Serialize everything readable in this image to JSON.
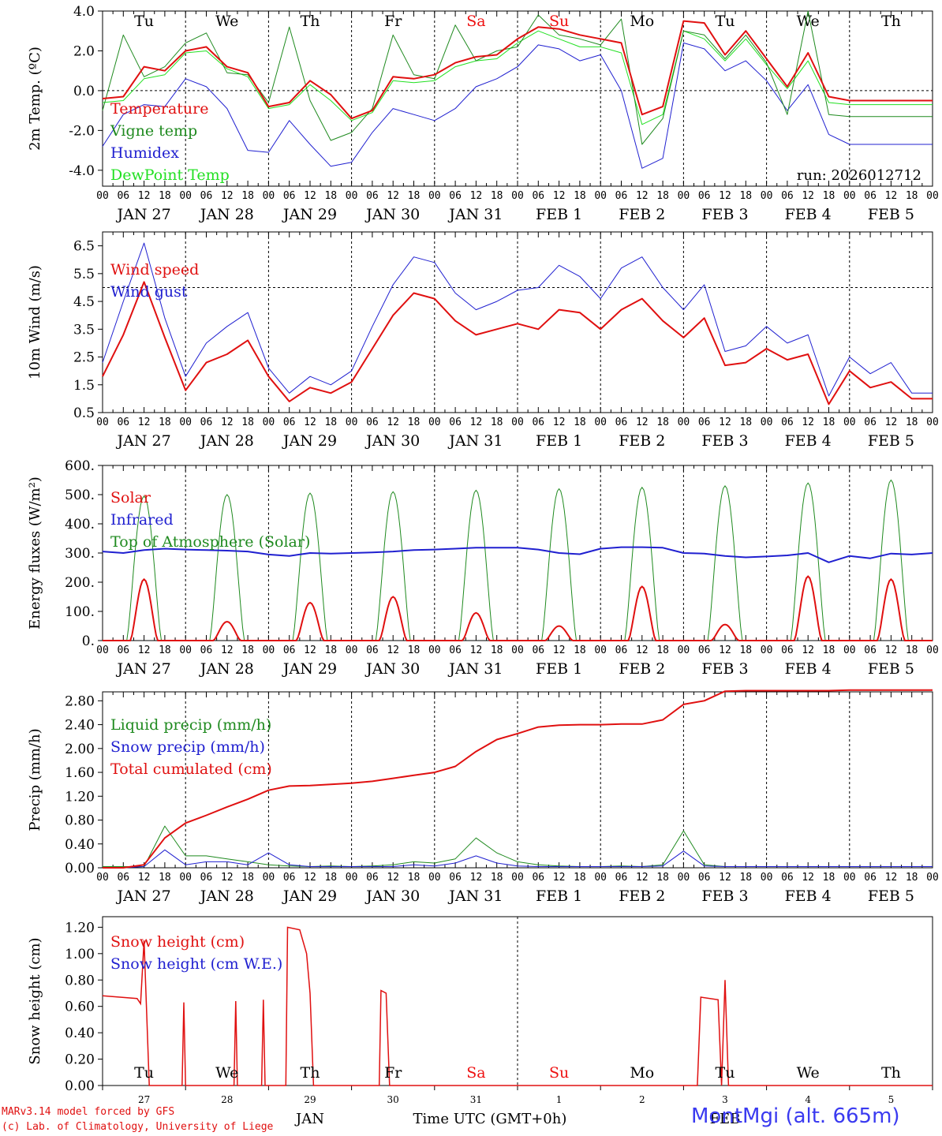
{
  "chart_data": [
    {
      "id": "temp",
      "type": "line",
      "ylabel": "2m Temp. (ºC)",
      "ylim": [
        -4.8,
        4.0
      ],
      "yticks": [
        4.0,
        2.0,
        0.0,
        -2.0,
        -4.0
      ],
      "yticklabels": [
        "4.0",
        "2.0",
        "0.0",
        "-2.0",
        "-4.0"
      ],
      "zero_line": 0.0,
      "day_names": [
        "Tu",
        "We",
        "Th",
        "Fr",
        "Sa",
        "Su",
        "Mo",
        "Tu",
        "We",
        "Th"
      ],
      "day_name_colors": [
        "#000",
        "#000",
        "#000",
        "#000",
        "#e11",
        "#e11",
        "#000",
        "#000",
        "#000",
        "#000"
      ],
      "legend": [
        "Temperature",
        "Vigne temp",
        "Humidex",
        "DewPoint Temp"
      ],
      "run_label": "run: 2026012712",
      "x_hours": [
        0,
        6,
        12,
        18,
        24,
        30,
        36,
        42,
        48,
        54,
        60,
        66,
        72,
        78,
        84,
        90,
        96,
        102,
        108,
        114,
        120,
        126,
        132,
        138,
        144,
        150,
        156,
        162,
        168,
        174,
        180,
        186,
        192,
        198,
        204,
        210,
        216,
        222,
        228,
        234,
        240
      ],
      "series": [
        {
          "name": "Temperature",
          "color": "#e01010",
          "width": 2,
          "values": [
            -0.4,
            -0.3,
            1.2,
            1.0,
            2.0,
            2.2,
            1.2,
            0.9,
            -0.8,
            -0.6,
            0.5,
            -0.2,
            -1.4,
            -1.0,
            0.7,
            0.6,
            0.8,
            1.4,
            1.7,
            1.8,
            2.6,
            3.2,
            3.1,
            2.8,
            2.6,
            2.4,
            -1.2,
            -0.8,
            3.5,
            3.4,
            1.8,
            3.0,
            1.6,
            0.2,
            1.9,
            -0.3,
            -0.5,
            -0.5,
            -0.5,
            -0.5,
            -0.5
          ]
        },
        {
          "name": "Vigne temp",
          "color": "#1f8a1f",
          "width": 1,
          "values": [
            -1.0,
            2.8,
            0.7,
            1.2,
            2.4,
            2.9,
            0.9,
            0.8,
            -0.6,
            3.2,
            -0.5,
            -2.5,
            -2.1,
            -0.9,
            2.8,
            0.8,
            0.6,
            3.3,
            1.5,
            2.0,
            2.2,
            3.8,
            2.8,
            2.6,
            2.3,
            3.6,
            -2.7,
            -1.4,
            3.0,
            2.8,
            1.6,
            2.8,
            1.4,
            -1.2,
            4.0,
            -1.2,
            -1.3,
            -1.3,
            -1.3,
            -1.3,
            -1.3
          ]
        },
        {
          "name": "Humidex",
          "color": "#2020d0",
          "width": 1,
          "values": [
            -2.8,
            -1.2,
            -0.7,
            -0.8,
            0.6,
            0.2,
            -0.9,
            -3.0,
            -3.1,
            -1.5,
            -2.7,
            -3.8,
            -3.6,
            -2.1,
            -0.9,
            -1.2,
            -1.5,
            -0.9,
            0.2,
            0.6,
            1.2,
            2.3,
            2.1,
            1.5,
            1.8,
            0.0,
            -3.9,
            -3.4,
            2.4,
            2.1,
            1.0,
            1.5,
            0.5,
            -1.0,
            0.3,
            -2.2,
            -2.7,
            -2.7,
            -2.7,
            -2.7,
            -2.7
          ]
        },
        {
          "name": "DewPoint Temp",
          "color": "#22e022",
          "width": 1,
          "values": [
            -0.6,
            -0.5,
            0.6,
            0.8,
            1.9,
            2.0,
            1.1,
            0.7,
            -0.9,
            -0.7,
            0.3,
            -0.5,
            -1.5,
            -1.1,
            0.5,
            0.4,
            0.5,
            1.2,
            1.5,
            1.6,
            2.4,
            3.0,
            2.6,
            2.2,
            2.2,
            1.9,
            -1.7,
            -1.2,
            3.0,
            2.6,
            1.5,
            2.6,
            1.3,
            0.1,
            1.5,
            -0.6,
            -0.7,
            -0.7,
            -0.7,
            -0.7,
            -0.7
          ]
        }
      ]
    },
    {
      "id": "wind",
      "type": "line",
      "ylabel": "10m Wind (m/s)",
      "ylim": [
        0.5,
        7.0
      ],
      "yticks": [
        6.5,
        5.5,
        4.5,
        3.5,
        2.5,
        1.5,
        0.5
      ],
      "yticklabels": [
        "6.5",
        "5.5",
        "4.5",
        "3.5",
        "2.5",
        "1.5",
        "0.5"
      ],
      "ref_line": 5.0,
      "legend": [
        "Wind speed",
        "Wind gust"
      ],
      "x_hours": [
        0,
        6,
        12,
        18,
        24,
        30,
        36,
        42,
        48,
        54,
        60,
        66,
        72,
        78,
        84,
        90,
        96,
        102,
        108,
        114,
        120,
        126,
        132,
        138,
        144,
        150,
        156,
        162,
        168,
        174,
        180,
        186,
        192,
        198,
        204,
        210,
        216,
        222,
        228,
        234,
        240
      ],
      "series": [
        {
          "name": "Wind speed",
          "color": "#e01010",
          "width": 2,
          "values": [
            1.8,
            3.3,
            5.2,
            3.2,
            1.3,
            2.3,
            2.6,
            3.1,
            1.8,
            0.9,
            1.4,
            1.2,
            1.6,
            2.8,
            4.0,
            4.8,
            4.6,
            3.8,
            3.3,
            3.5,
            3.7,
            3.5,
            4.2,
            4.1,
            3.5,
            4.2,
            4.6,
            3.8,
            3.2,
            3.9,
            2.2,
            2.3,
            2.8,
            2.4,
            2.6,
            0.8,
            2.0,
            1.4,
            1.6,
            1.0,
            1.0
          ]
        },
        {
          "name": "Wind gust",
          "color": "#2020d0",
          "width": 1,
          "values": [
            2.3,
            4.5,
            6.6,
            3.9,
            1.8,
            3.0,
            3.6,
            4.1,
            2.1,
            1.2,
            1.8,
            1.5,
            2.0,
            3.6,
            5.1,
            6.1,
            5.9,
            4.8,
            4.2,
            4.5,
            4.9,
            5.0,
            5.8,
            5.4,
            4.6,
            5.7,
            6.1,
            5.0,
            4.2,
            5.1,
            2.7,
            2.9,
            3.6,
            3.0,
            3.3,
            1.1,
            2.5,
            1.9,
            2.3,
            1.2,
            1.2
          ]
        }
      ]
    },
    {
      "id": "flux",
      "type": "line",
      "ylabel": "Energy fluxes (W/m²)",
      "ylim": [
        0,
        600
      ],
      "yticks": [
        600,
        500,
        400,
        300,
        200,
        100,
        0
      ],
      "yticklabels": [
        "600.",
        "500.",
        "400.",
        "300.",
        "200.",
        "100.",
        "0."
      ],
      "legend": [
        "Solar",
        "Infrared",
        "Top of Atmosphere (Solar)"
      ],
      "toa_peaks": [
        495,
        500,
        505,
        510,
        515,
        520,
        525,
        530,
        540,
        550
      ],
      "solar_peaks": [
        210,
        65,
        130,
        150,
        95,
        50,
        185,
        55,
        220,
        210
      ],
      "infrared": [
        305,
        300,
        310,
        315,
        312,
        310,
        308,
        305,
        295,
        290,
        300,
        298,
        300,
        302,
        305,
        310,
        312,
        315,
        318,
        318,
        318,
        312,
        300,
        296,
        315,
        320,
        320,
        318,
        300,
        298,
        290,
        285,
        288,
        292,
        300,
        268,
        290,
        282,
        298,
        295,
        300
      ],
      "x_hours": [
        0,
        6,
        12,
        18,
        24,
        30,
        36,
        42,
        48,
        54,
        60,
        66,
        72,
        78,
        84,
        90,
        96,
        102,
        108,
        114,
        120,
        126,
        132,
        138,
        144,
        150,
        156,
        162,
        168,
        174,
        180,
        186,
        192,
        198,
        204,
        210,
        216,
        222,
        228,
        234,
        240
      ],
      "colors": {
        "solar": "#e01010",
        "infrared": "#2020d0",
        "toa": "#1f8a1f"
      }
    },
    {
      "id": "precip",
      "type": "line",
      "ylabel": "Precip (mm/h)",
      "ylim": [
        0,
        2.95
      ],
      "yticks": [
        2.8,
        2.4,
        2.0,
        1.6,
        1.2,
        0.8,
        0.4,
        0.0
      ],
      "yticklabels": [
        "2.80",
        "2.40",
        "2.00",
        "1.60",
        "1.20",
        "0.80",
        "0.40",
        "0.00"
      ],
      "legend": [
        "Liquid precip (mm/h)",
        "Snow precip (mm/h)",
        "Total cumulated (cm)"
      ],
      "x_hours": [
        0,
        6,
        12,
        18,
        24,
        30,
        36,
        42,
        48,
        54,
        60,
        66,
        72,
        78,
        84,
        90,
        96,
        102,
        108,
        114,
        120,
        126,
        132,
        138,
        144,
        150,
        156,
        162,
        168,
        174,
        180,
        186,
        192,
        198,
        204,
        210,
        216,
        222,
        228,
        234,
        240
      ],
      "series": [
        {
          "name": "Total cumulated (cm)",
          "color": "#e01010",
          "width": 2,
          "values": [
            0.0,
            0.0,
            0.05,
            0.5,
            0.75,
            0.88,
            1.02,
            1.15,
            1.3,
            1.37,
            1.38,
            1.4,
            1.42,
            1.45,
            1.5,
            1.55,
            1.6,
            1.7,
            1.95,
            2.15,
            2.25,
            2.36,
            2.39,
            2.4,
            2.4,
            2.41,
            2.41,
            2.48,
            2.74,
            2.8,
            2.96,
            2.97,
            2.97,
            2.97,
            2.97,
            2.97,
            2.98,
            2.98,
            2.98,
            2.98,
            2.98
          ]
        },
        {
          "name": "Liquid precip (mm/h)",
          "color": "#1f8a1f",
          "width": 1,
          "values": [
            0.02,
            0.02,
            0.02,
            0.7,
            0.2,
            0.2,
            0.15,
            0.1,
            0.05,
            0.03,
            0.02,
            0.03,
            0.02,
            0.03,
            0.05,
            0.1,
            0.08,
            0.15,
            0.5,
            0.25,
            0.1,
            0.05,
            0.03,
            0.02,
            0.02,
            0.03,
            0.02,
            0.05,
            0.62,
            0.05,
            0.02,
            0.02,
            0.02,
            0.02,
            0.02,
            0.02,
            0.02,
            0.02,
            0.02,
            0.02,
            0.02
          ]
        },
        {
          "name": "Snow precip (mm/h)",
          "color": "#2020d0",
          "width": 1,
          "values": [
            0.0,
            0.0,
            0.02,
            0.3,
            0.05,
            0.1,
            0.1,
            0.05,
            0.25,
            0.05,
            0.02,
            0.02,
            0.02,
            0.02,
            0.02,
            0.05,
            0.03,
            0.08,
            0.2,
            0.08,
            0.03,
            0.02,
            0.02,
            0.02,
            0.02,
            0.02,
            0.02,
            0.03,
            0.28,
            0.03,
            0.02,
            0.02,
            0.02,
            0.02,
            0.02,
            0.02,
            0.02,
            0.02,
            0.02,
            0.02,
            0.02
          ]
        }
      ]
    },
    {
      "id": "snow",
      "type": "line",
      "ylabel": "Snow height (cm)",
      "ylim": [
        0,
        1.28
      ],
      "yticks": [
        1.2,
        1.0,
        0.8,
        0.6,
        0.4,
        0.2,
        0.0
      ],
      "yticklabels": [
        "1.20",
        "1.00",
        "0.80",
        "0.60",
        "0.40",
        "0.20",
        "0.00"
      ],
      "legend": [
        "Snow height (cm)",
        "Snow height (cm W.E.)"
      ],
      "day_names": [
        "Tu",
        "We",
        "Th",
        "Fr",
        "Sa",
        "Su",
        "Mo",
        "Tu",
        "We",
        "Th"
      ],
      "day_name_colors": [
        "#000",
        "#000",
        "#000",
        "#000",
        "#e11",
        "#e11",
        "#000",
        "#000",
        "#000",
        "#000"
      ],
      "day_numbers": [
        "27",
        "28",
        "29",
        "30",
        "31",
        "1",
        "2",
        "3",
        "4",
        "5"
      ],
      "month_labels": [
        "JAN",
        "FEB"
      ],
      "xlabel": "Time UTC (GMT+0h)",
      "points": [
        [
          0,
          0.68
        ],
        [
          10,
          0.66
        ],
        [
          11,
          0.62
        ],
        [
          12,
          1.1
        ],
        [
          13.5,
          0.0
        ],
        [
          23,
          0.0
        ],
        [
          23.5,
          0.63
        ],
        [
          24,
          0.0
        ],
        [
          38,
          0.0
        ],
        [
          38.5,
          0.64
        ],
        [
          39,
          0.0
        ],
        [
          46,
          0.0
        ],
        [
          46.5,
          0.65
        ],
        [
          47,
          0.0
        ],
        [
          53,
          0.0
        ],
        [
          53.5,
          1.2
        ],
        [
          57,
          1.18
        ],
        [
          59,
          1.0
        ],
        [
          60,
          0.7
        ],
        [
          61,
          0.0
        ],
        [
          80,
          0.0
        ],
        [
          80.5,
          0.72
        ],
        [
          82,
          0.7
        ],
        [
          83,
          0.0
        ],
        [
          172,
          0.0
        ],
        [
          173,
          0.67
        ],
        [
          178,
          0.65
        ],
        [
          179,
          0.0
        ],
        [
          180,
          0.8
        ],
        [
          181,
          0.0
        ],
        [
          240,
          0.0
        ]
      ],
      "colors": {
        "snow": "#e01010",
        "we": "#2020d0"
      }
    }
  ],
  "axis": {
    "hour_labels": [
      "00",
      "06",
      "12",
      "18"
    ],
    "date_labels": [
      "JAN 27",
      "JAN 28",
      "JAN 29",
      "JAN 30",
      "JAN 31",
      "FEB  1",
      "FEB  2",
      "FEB  3",
      "FEB  4",
      "FEB  5"
    ]
  },
  "footer": {
    "model": "MARv3.14 model forced by GFS",
    "credit": "(c) Lab. of Climatology, University of Liege",
    "station": "MontMgi (alt. 665m)"
  }
}
